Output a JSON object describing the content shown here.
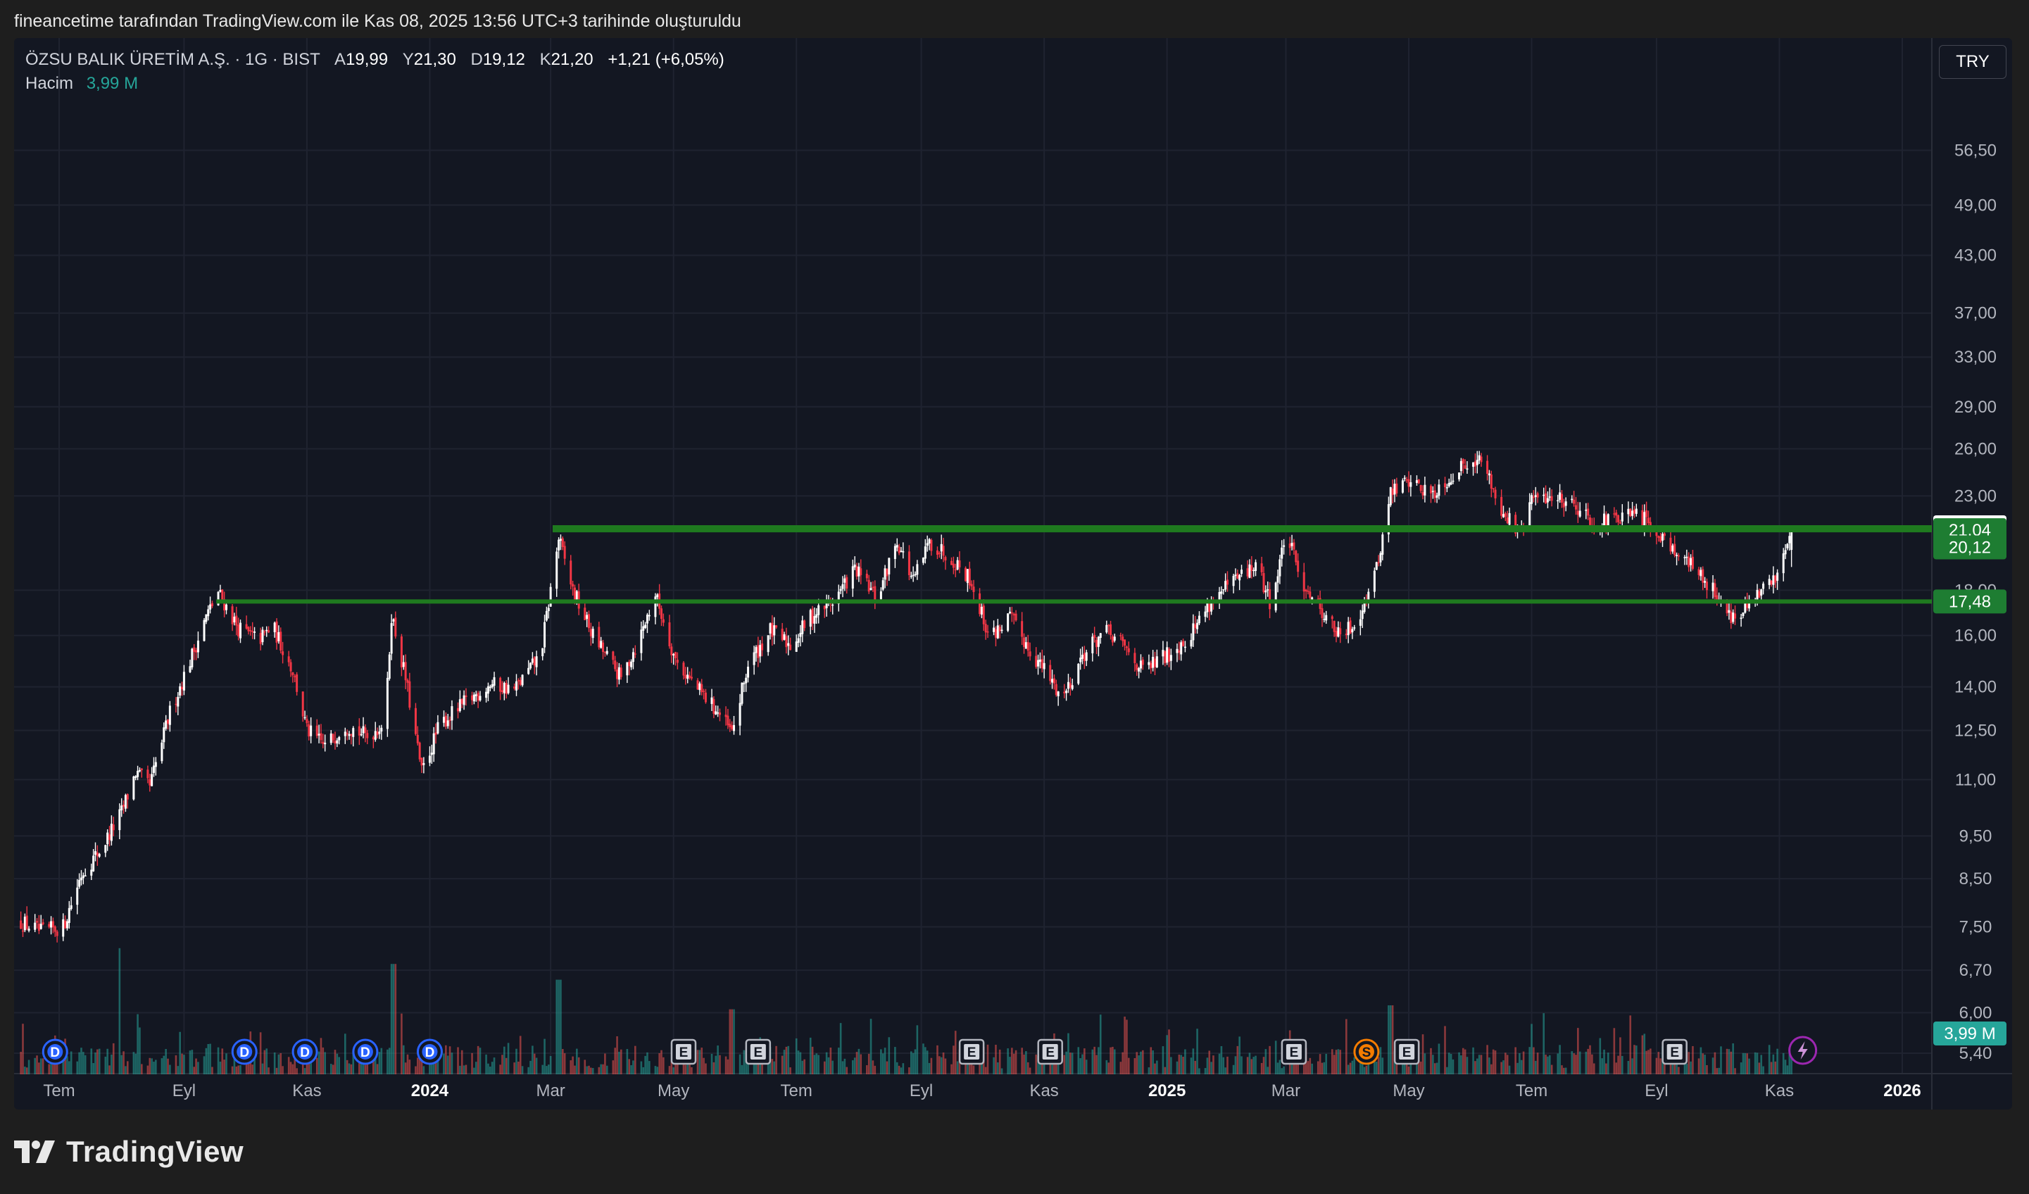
{
  "caption": "fineancetime tarafından TradingView.com ile Kas 08, 2025 13:56 UTC+3 tarihinde oluşturuldu",
  "legend": {
    "symbol": "ÖZSU BALIK ÜRETİM A.Ş. · 1G · BIST",
    "open_label": "A",
    "open": "19,99",
    "high_label": "Y",
    "high": "21,30",
    "low_label": "D",
    "low": "19,12",
    "close_label": "K",
    "close": "21,20",
    "change": "+1,21 (+6,05%)",
    "volume_label": "Hacim",
    "volume": "3,99 M"
  },
  "currency": "TRY",
  "brand": "TradingView",
  "colors": {
    "up": "#ffffff",
    "down": "#f23645",
    "volume_up": "#26a69a",
    "volume_down": "#ef5350",
    "level": "#1f7a1f",
    "level_tag": "#1e7d32",
    "grid": "#1f2330",
    "background": "#131722"
  },
  "chart_data": {
    "type": "candlestick",
    "scale": "log",
    "ylim": [
      5.4,
      63
    ],
    "y_ticks": [
      "56,50",
      "49,00",
      "43,00",
      "37,00",
      "33,00",
      "29,00",
      "26,00",
      "23,00",
      "18,00",
      "16,00",
      "14,00",
      "12,50",
      "11,00",
      "9,50",
      "8,50",
      "7,50",
      "6,70",
      "6,00",
      "5,40"
    ],
    "x_ticks": [
      {
        "label": "Tem",
        "date": "2023-07-01",
        "bold": false
      },
      {
        "label": "Eyl",
        "date": "2023-09-01",
        "bold": false
      },
      {
        "label": "Kas",
        "date": "2023-11-01",
        "bold": false
      },
      {
        "label": "2024",
        "date": "2024-01-01",
        "bold": true
      },
      {
        "label": "Mar",
        "date": "2024-03-01",
        "bold": false
      },
      {
        "label": "May",
        "date": "2024-05-01",
        "bold": false
      },
      {
        "label": "Tem",
        "date": "2024-07-01",
        "bold": false
      },
      {
        "label": "Eyl",
        "date": "2024-09-01",
        "bold": false
      },
      {
        "label": "Kas",
        "date": "2024-11-01",
        "bold": false
      },
      {
        "label": "2025",
        "date": "2025-01-01",
        "bold": true
      },
      {
        "label": "Mar",
        "date": "2025-03-01",
        "bold": false
      },
      {
        "label": "May",
        "date": "2025-05-01",
        "bold": false
      },
      {
        "label": "Tem",
        "date": "2025-07-01",
        "bold": false
      },
      {
        "label": "Eyl",
        "date": "2025-09-01",
        "bold": false
      },
      {
        "label": "Kas",
        "date": "2025-11-01",
        "bold": false
      },
      {
        "label": "2026",
        "date": "2026-01-01",
        "bold": true
      }
    ],
    "close_path": [
      [
        "2023-06-12",
        7.6
      ],
      [
        "2023-06-22",
        7.4
      ],
      [
        "2023-07-03",
        7.5
      ],
      [
        "2023-07-12",
        8.6
      ],
      [
        "2023-07-22",
        9.2
      ],
      [
        "2023-08-01",
        10.1
      ],
      [
        "2023-08-08",
        11.2
      ],
      [
        "2023-08-15",
        10.8
      ],
      [
        "2023-08-25",
        13.1
      ],
      [
        "2023-09-05",
        15.2
      ],
      [
        "2023-09-12",
        16.8
      ],
      [
        "2023-09-18",
        17.9
      ],
      [
        "2023-09-28",
        16.3
      ],
      [
        "2023-10-08",
        15.8
      ],
      [
        "2023-10-15",
        16.4
      ],
      [
        "2023-10-25",
        14.6
      ],
      [
        "2023-11-01",
        12.5
      ],
      [
        "2023-11-10",
        12.0
      ],
      [
        "2023-11-20",
        12.7
      ],
      [
        "2023-12-01",
        12.3
      ],
      [
        "2023-12-10",
        12.8
      ],
      [
        "2023-12-13",
        16.9
      ],
      [
        "2023-12-20",
        14.3
      ],
      [
        "2023-12-28",
        11.2
      ],
      [
        "2024-01-06",
        12.7
      ],
      [
        "2024-01-18",
        13.4
      ],
      [
        "2024-01-31",
        14.1
      ],
      [
        "2024-02-12",
        13.9
      ],
      [
        "2024-02-25",
        15.2
      ],
      [
        "2024-03-05",
        20.6
      ],
      [
        "2024-03-12",
        18.0
      ],
      [
        "2024-03-22",
        16.0
      ],
      [
        "2024-04-05",
        14.3
      ],
      [
        "2024-04-15",
        16.1
      ],
      [
        "2024-04-22",
        17.8
      ],
      [
        "2024-05-02",
        15.0
      ],
      [
        "2024-05-12",
        14.0
      ],
      [
        "2024-05-22",
        13.2
      ],
      [
        "2024-05-30",
        12.4
      ],
      [
        "2024-06-07",
        14.8
      ],
      [
        "2024-06-18",
        16.2
      ],
      [
        "2024-06-28",
        15.6
      ],
      [
        "2024-07-08",
        16.8
      ],
      [
        "2024-07-20",
        17.6
      ],
      [
        "2024-07-30",
        19.0
      ],
      [
        "2024-08-10",
        17.6
      ],
      [
        "2024-08-20",
        20.5
      ],
      [
        "2024-08-28",
        18.4
      ],
      [
        "2024-09-05",
        20.4
      ],
      [
        "2024-09-15",
        19.7
      ],
      [
        "2024-09-25",
        18.6
      ],
      [
        "2024-10-05",
        15.9
      ],
      [
        "2024-10-15",
        16.8
      ],
      [
        "2024-10-25",
        15.4
      ],
      [
        "2024-11-03",
        14.4
      ],
      [
        "2024-11-10",
        13.6
      ],
      [
        "2024-11-20",
        15.2
      ],
      [
        "2024-12-01",
        16.2
      ],
      [
        "2024-12-10",
        15.6
      ],
      [
        "2024-12-20",
        14.6
      ],
      [
        "2025-01-01",
        15.2
      ],
      [
        "2025-01-12",
        16.0
      ],
      [
        "2025-01-22",
        17.4
      ],
      [
        "2025-02-02",
        18.3
      ],
      [
        "2025-02-14",
        19.2
      ],
      [
        "2025-02-22",
        17.3
      ],
      [
        "2025-03-01",
        21.0
      ],
      [
        "2025-03-08",
        18.6
      ],
      [
        "2025-03-18",
        17.2
      ],
      [
        "2025-03-28",
        15.9
      ],
      [
        "2025-04-05",
        16.6
      ],
      [
        "2025-04-15",
        19.0
      ],
      [
        "2025-04-22",
        23.2
      ],
      [
        "2025-05-01",
        24.0
      ],
      [
        "2025-05-12",
        23.1
      ],
      [
        "2025-05-22",
        24.2
      ],
      [
        "2025-06-02",
        25.5
      ],
      [
        "2025-06-08",
        24.8
      ],
      [
        "2025-06-15",
        22.4
      ],
      [
        "2025-06-25",
        20.8
      ],
      [
        "2025-07-01",
        22.8
      ],
      [
        "2025-07-12",
        23.0
      ],
      [
        "2025-07-22",
        22.6
      ],
      [
        "2025-08-01",
        21.4
      ],
      [
        "2025-08-12",
        21.6
      ],
      [
        "2025-08-22",
        21.9
      ],
      [
        "2025-09-01",
        21.1
      ],
      [
        "2025-09-12",
        19.8
      ],
      [
        "2025-09-22",
        18.8
      ],
      [
        "2025-10-01",
        17.8
      ],
      [
        "2025-10-10",
        16.6
      ],
      [
        "2025-10-20",
        17.6
      ],
      [
        "2025-10-30",
        18.6
      ],
      [
        "2025-11-07",
        21.2
      ]
    ],
    "volume_spikes": [
      {
        "date": "2023-07-30",
        "value": 6.4
      },
      {
        "date": "2023-12-14",
        "value": 5.6
      },
      {
        "date": "2024-03-05",
        "value": 4.8
      },
      {
        "date": "2024-05-30",
        "value": 3.3
      },
      {
        "date": "2025-04-22",
        "value": 3.5
      }
    ],
    "levels": [
      {
        "value": 21.2,
        "label": "21,20",
        "kind": "price",
        "start": "2024-03-02"
      },
      {
        "value": 21.04,
        "label": "21,04",
        "kind": "level",
        "start": "2024-03-02"
      },
      {
        "value": 20.12,
        "label": "20,12",
        "kind": "level",
        "start": null
      },
      {
        "value": 17.48,
        "label": "17,48",
        "kind": "level",
        "start": "2023-09-17"
      }
    ],
    "events": [
      {
        "date": "2023-06-29",
        "type": "D"
      },
      {
        "date": "2023-10-01",
        "type": "D"
      },
      {
        "date": "2023-10-31",
        "type": "D"
      },
      {
        "date": "2023-11-30",
        "type": "D"
      },
      {
        "date": "2024-01-01",
        "type": "D"
      },
      {
        "date": "2024-05-06",
        "type": "E"
      },
      {
        "date": "2024-06-12",
        "type": "E"
      },
      {
        "date": "2024-09-26",
        "type": "E"
      },
      {
        "date": "2024-11-04",
        "type": "E"
      },
      {
        "date": "2025-03-05",
        "type": "E"
      },
      {
        "date": "2025-04-10",
        "type": "S"
      },
      {
        "date": "2025-04-30",
        "type": "E"
      },
      {
        "date": "2025-09-10",
        "type": "E"
      },
      {
        "date": "2025-11-07",
        "type": "lightning"
      }
    ]
  }
}
